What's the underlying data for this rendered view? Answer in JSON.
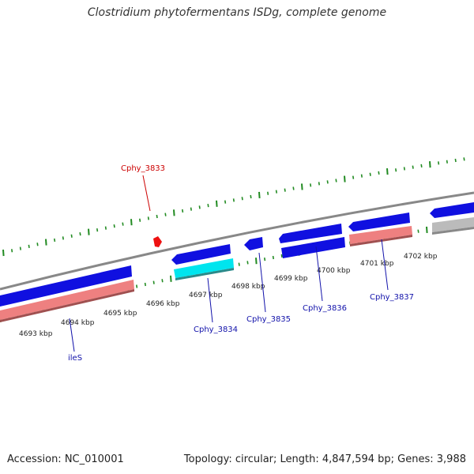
{
  "title": "Clostridium phytofermentans ISDg, complete genome",
  "footer": {
    "accession": "Accession: NC_010001",
    "summary": "Topology: circular; Length: 4,847,594 bp; Genes: 3,988"
  },
  "colors": {
    "forward_cds": "#1010e0",
    "reverse_cds": "#ee8080",
    "reverse_cds_highlight": "#00e5ee",
    "rna": "#bbbbbb",
    "backbone": "#888888",
    "ticks": "#228b22",
    "label_blue": "#1111aa",
    "label_red": "#cc0000"
  },
  "scale_labels": [
    "4693 kbp",
    "4694 kbp",
    "4695 kbp",
    "4696 kbp",
    "4697 kbp",
    "4698 kbp",
    "4699 kbp",
    "4700 kbp",
    "4701 kbp",
    "4702 kbp"
  ],
  "gene_labels": [
    {
      "text": "Cphy_3833",
      "color": "#cc0000"
    },
    {
      "text": "ileS",
      "color": "#1111aa"
    },
    {
      "text": "Cphy_3834",
      "color": "#1111aa"
    },
    {
      "text": "Cphy_3835",
      "color": "#1111aa"
    },
    {
      "text": "Cphy_3836",
      "color": "#1111aa"
    },
    {
      "text": "Cphy_3837",
      "color": "#1111aa"
    }
  ]
}
